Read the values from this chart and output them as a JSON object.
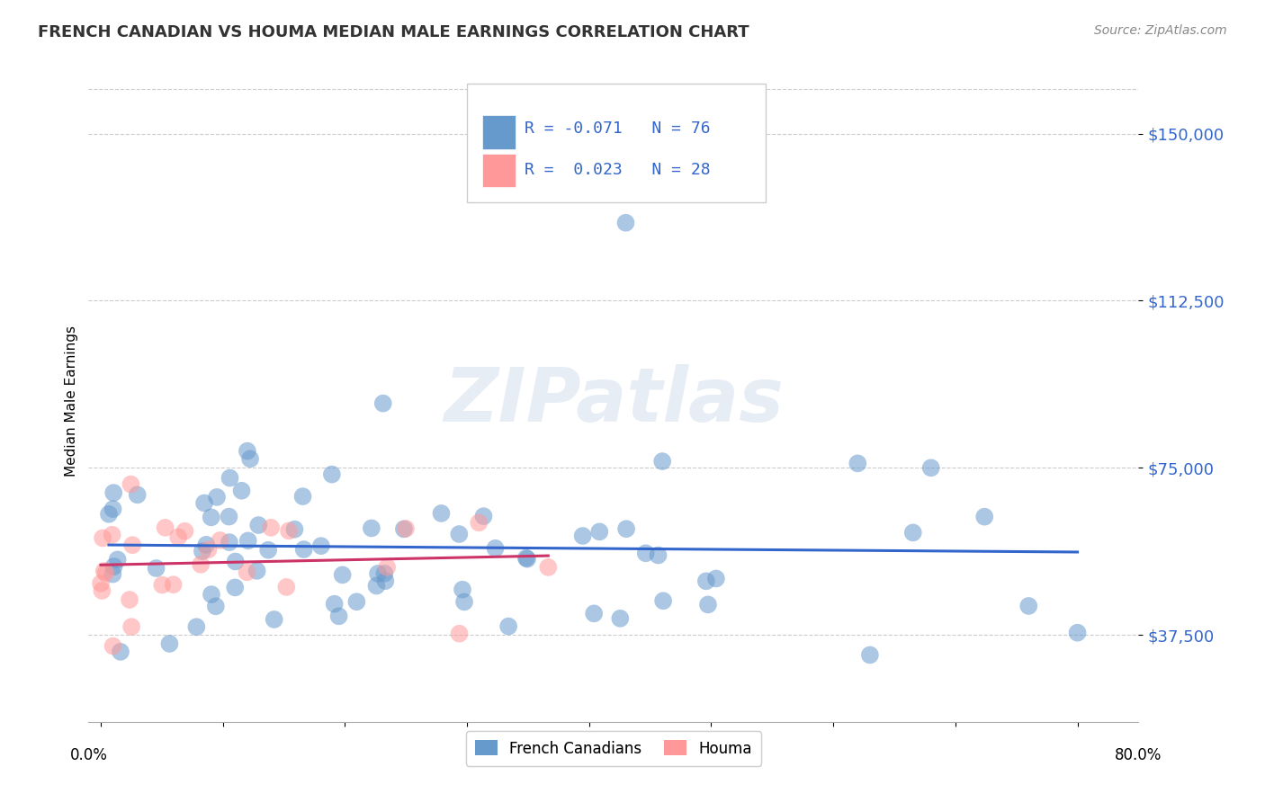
{
  "title": "FRENCH CANADIAN VS HOUMA MEDIAN MALE EARNINGS CORRELATION CHART",
  "source": "Source: ZipAtlas.com",
  "ylabel": "Median Male Earnings",
  "ytick_labels": [
    "$37,500",
    "$75,000",
    "$112,500",
    "$150,000"
  ],
  "ytick_values": [
    37500,
    75000,
    112500,
    150000
  ],
  "ymin": 18000,
  "ymax": 162000,
  "xmin": -0.01,
  "xmax": 0.85,
  "legend_blue_label": "French Canadians",
  "legend_pink_label": "Houma",
  "r_blue": -0.071,
  "n_blue": 76,
  "r_pink": 0.023,
  "n_pink": 28,
  "blue_color": "#6699cc",
  "pink_color": "#ff9999",
  "line_blue": "#3366cc",
  "line_pink": "#cc3366",
  "watermark": "ZIPatlas",
  "grid_color": "#cccccc",
  "title_color": "#333333",
  "source_color": "#888888",
  "ytick_color": "#3366cc"
}
